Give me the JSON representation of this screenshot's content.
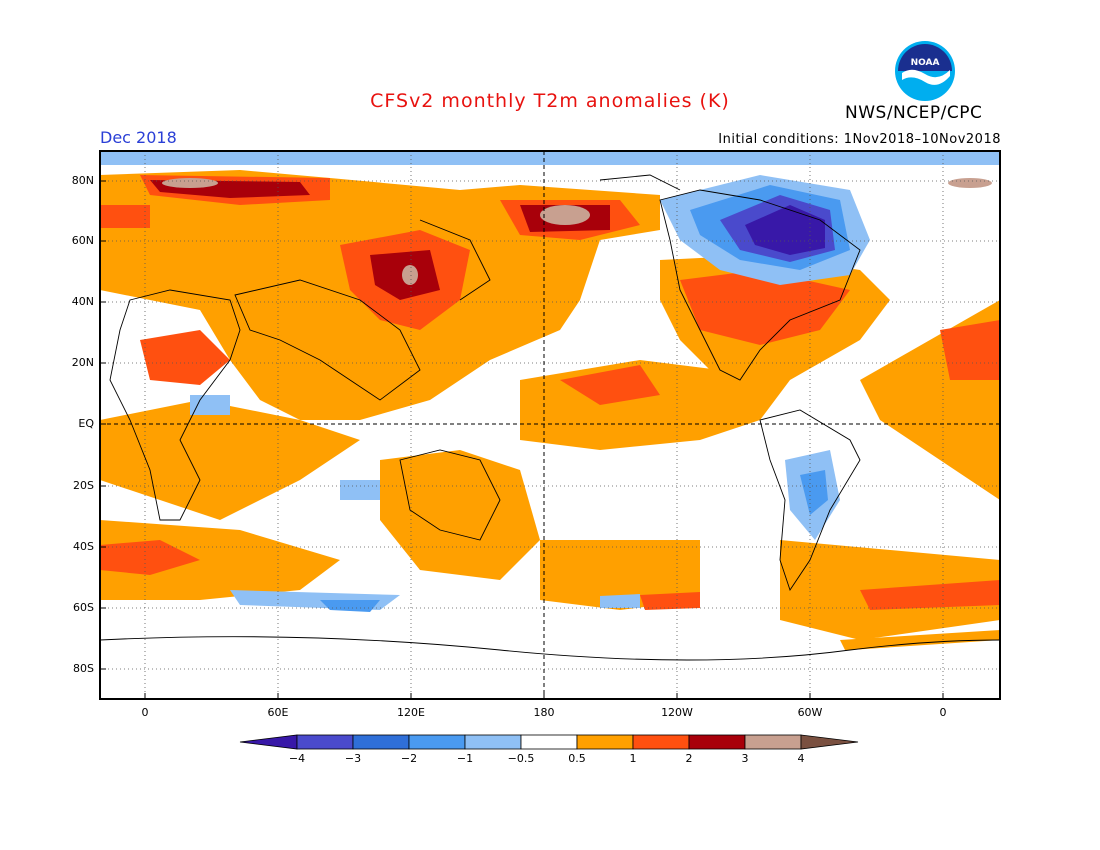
{
  "header": {
    "title": "CFSv2 monthly T2m anomalies (K)",
    "agency": "NWS/NCEP/CPC",
    "month": "Dec 2018",
    "initial_conditions": "Initial conditions: 1Nov2018–10Nov2018",
    "logo_icon": "noaa-logo-icon"
  },
  "map": {
    "lat_labels": [
      "80N",
      "60N",
      "40N",
      "20N",
      "EQ",
      "20S",
      "40S",
      "60S",
      "80S"
    ],
    "lon_labels": [
      "0",
      "60E",
      "120E",
      "180",
      "120W",
      "60W",
      "0"
    ]
  },
  "colorbar": {
    "labels": [
      "−4",
      "−3",
      "−2",
      "−1",
      "−0.5",
      "0.5",
      "1",
      "2",
      "3",
      "4"
    ],
    "colors": [
      "#3818a8",
      "#4a4acc",
      "#2f6fd8",
      "#4a9af0",
      "#8fc0f5",
      "#ffffff",
      "#ffa000",
      "#ff5010",
      "#a8000a",
      "#c8a090",
      "#7a5040"
    ]
  },
  "palette": {
    "ocean": "#ffffff",
    "cold1": "#8fc0f5",
    "cold2": "#4a9af0",
    "cold3": "#2f6fd8",
    "cold4": "#4a4acc",
    "cold5": "#3818a8",
    "warm1": "#ffa000",
    "warm2": "#ff5010",
    "warm3": "#a8000a",
    "warm4": "#c8a090"
  }
}
